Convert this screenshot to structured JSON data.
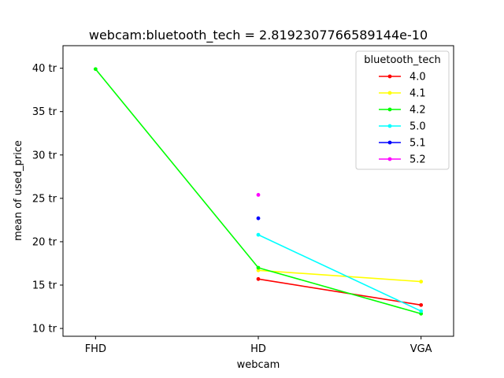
{
  "chart_data": {
    "type": "line",
    "title": "webcam:bluetooth_tech = 2.8192307766589144e-10",
    "xlabel": "webcam",
    "ylabel": "mean of used_price",
    "categories": [
      "FHD",
      "HD",
      "VGA"
    ],
    "yticks": [
      {
        "value": 10,
        "label": "10 tr"
      },
      {
        "value": 15,
        "label": "15 tr"
      },
      {
        "value": 20,
        "label": "20 tr"
      },
      {
        "value": 25,
        "label": "25 tr"
      },
      {
        "value": 30,
        "label": "30 tr"
      },
      {
        "value": 35,
        "label": "35 tr"
      },
      {
        "value": 40,
        "label": "40 tr"
      }
    ],
    "ylim": [
      9.1,
      42.6
    ],
    "legend_title": "bluetooth_tech",
    "legend_position": "top-right",
    "grid": false,
    "series": [
      {
        "name": "4.0",
        "color": "#ff0000",
        "values": [
          null,
          15.7,
          12.7
        ]
      },
      {
        "name": "4.1",
        "color": "#ffff00",
        "values": [
          null,
          16.7,
          15.4
        ]
      },
      {
        "name": "4.2",
        "color": "#00ff00",
        "values": [
          39.9,
          17.0,
          11.7
        ]
      },
      {
        "name": "5.0",
        "color": "#00ffff",
        "values": [
          null,
          20.8,
          12.0
        ]
      },
      {
        "name": "5.1",
        "color": "#0000ff",
        "values": [
          null,
          22.7,
          null
        ]
      },
      {
        "name": "5.2",
        "color": "#ff00ff",
        "values": [
          null,
          25.4,
          null
        ]
      }
    ]
  }
}
